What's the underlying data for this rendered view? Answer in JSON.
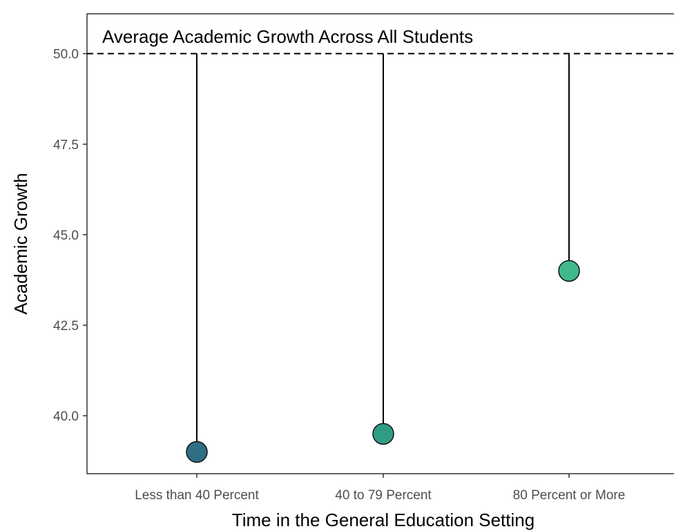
{
  "chart_data": {
    "type": "lollipop",
    "categories": [
      "Less than 40 Percent",
      "40 to 79 Percent",
      "80 Percent or More"
    ],
    "values": [
      39.0,
      39.5,
      44.0
    ],
    "reference": {
      "value": 50.0,
      "label": "Average Academic Growth Across All Students",
      "style": "dashed"
    },
    "xlabel": "Time in the General Education Setting",
    "ylabel": "Academic Growth",
    "ylim": [
      38.4,
      51.1
    ],
    "yticks": [
      40.0,
      42.5,
      45.0,
      47.5,
      50.0
    ],
    "ytick_labels": [
      "40.0",
      "42.5",
      "45.0",
      "47.5",
      "50.0"
    ],
    "point_colors": [
      "#2f6f86",
      "#2f9d86",
      "#3fb98a"
    ],
    "grid": false,
    "legend": "none"
  }
}
